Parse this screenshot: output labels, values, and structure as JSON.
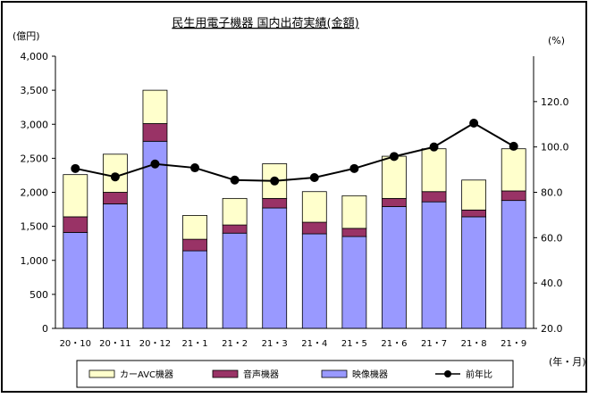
{
  "chart_data": {
    "type": "bar",
    "title": "民生用電子機器 国内出荷実績(金額)",
    "left_unit": "(億円)",
    "right_unit": "(%)",
    "x_unit": "(年・月)",
    "categories": [
      "20・10",
      "20・11",
      "20・12",
      "21・1",
      "21・2",
      "21・3",
      "21・4",
      "21・5",
      "21・6",
      "21・7",
      "21・8",
      "21・9"
    ],
    "left_axis": {
      "min": 0,
      "max": 4000,
      "ticks": [
        "0",
        "500",
        "1,000",
        "1,500",
        "2,000",
        "2,500",
        "3,000",
        "3,500",
        "4,000"
      ],
      "tick_values": [
        0,
        500,
        1000,
        1500,
        2000,
        2500,
        3000,
        3500,
        4000
      ]
    },
    "right_axis": {
      "min": 20,
      "max": 140,
      "ticks": [
        "20.0",
        "40.0",
        "60.0",
        "80.0",
        "100.0",
        "120.0"
      ],
      "tick_values": [
        20,
        40,
        60,
        80,
        100,
        120
      ]
    },
    "stacked_series": [
      {
        "name": "映像機器",
        "color": "#9999ff",
        "values": [
          1410,
          1830,
          2750,
          1140,
          1400,
          1770,
          1390,
          1350,
          1790,
          1860,
          1640,
          1880
        ]
      },
      {
        "name": "音声機器",
        "color": "#993366",
        "values": [
          230,
          170,
          260,
          170,
          120,
          140,
          170,
          120,
          120,
          150,
          100,
          140
        ]
      },
      {
        "name": "カーAVC機器",
        "color": "#ffffcc",
        "values": [
          620,
          560,
          490,
          350,
          390,
          510,
          450,
          480,
          620,
          630,
          440,
          620
        ]
      }
    ],
    "line_series": {
      "name": "前年比",
      "color": "#000000",
      "values": [
        90.5,
        86.8,
        92.5,
        90.8,
        85.4,
        85.0,
        86.5,
        90.5,
        95.8,
        100.0,
        110.5,
        100.3
      ]
    },
    "legend_order": [
      "カーAVC機器",
      "音声機器",
      "映像機器",
      "前年比"
    ],
    "legend_position": "bottom",
    "grid": false
  }
}
